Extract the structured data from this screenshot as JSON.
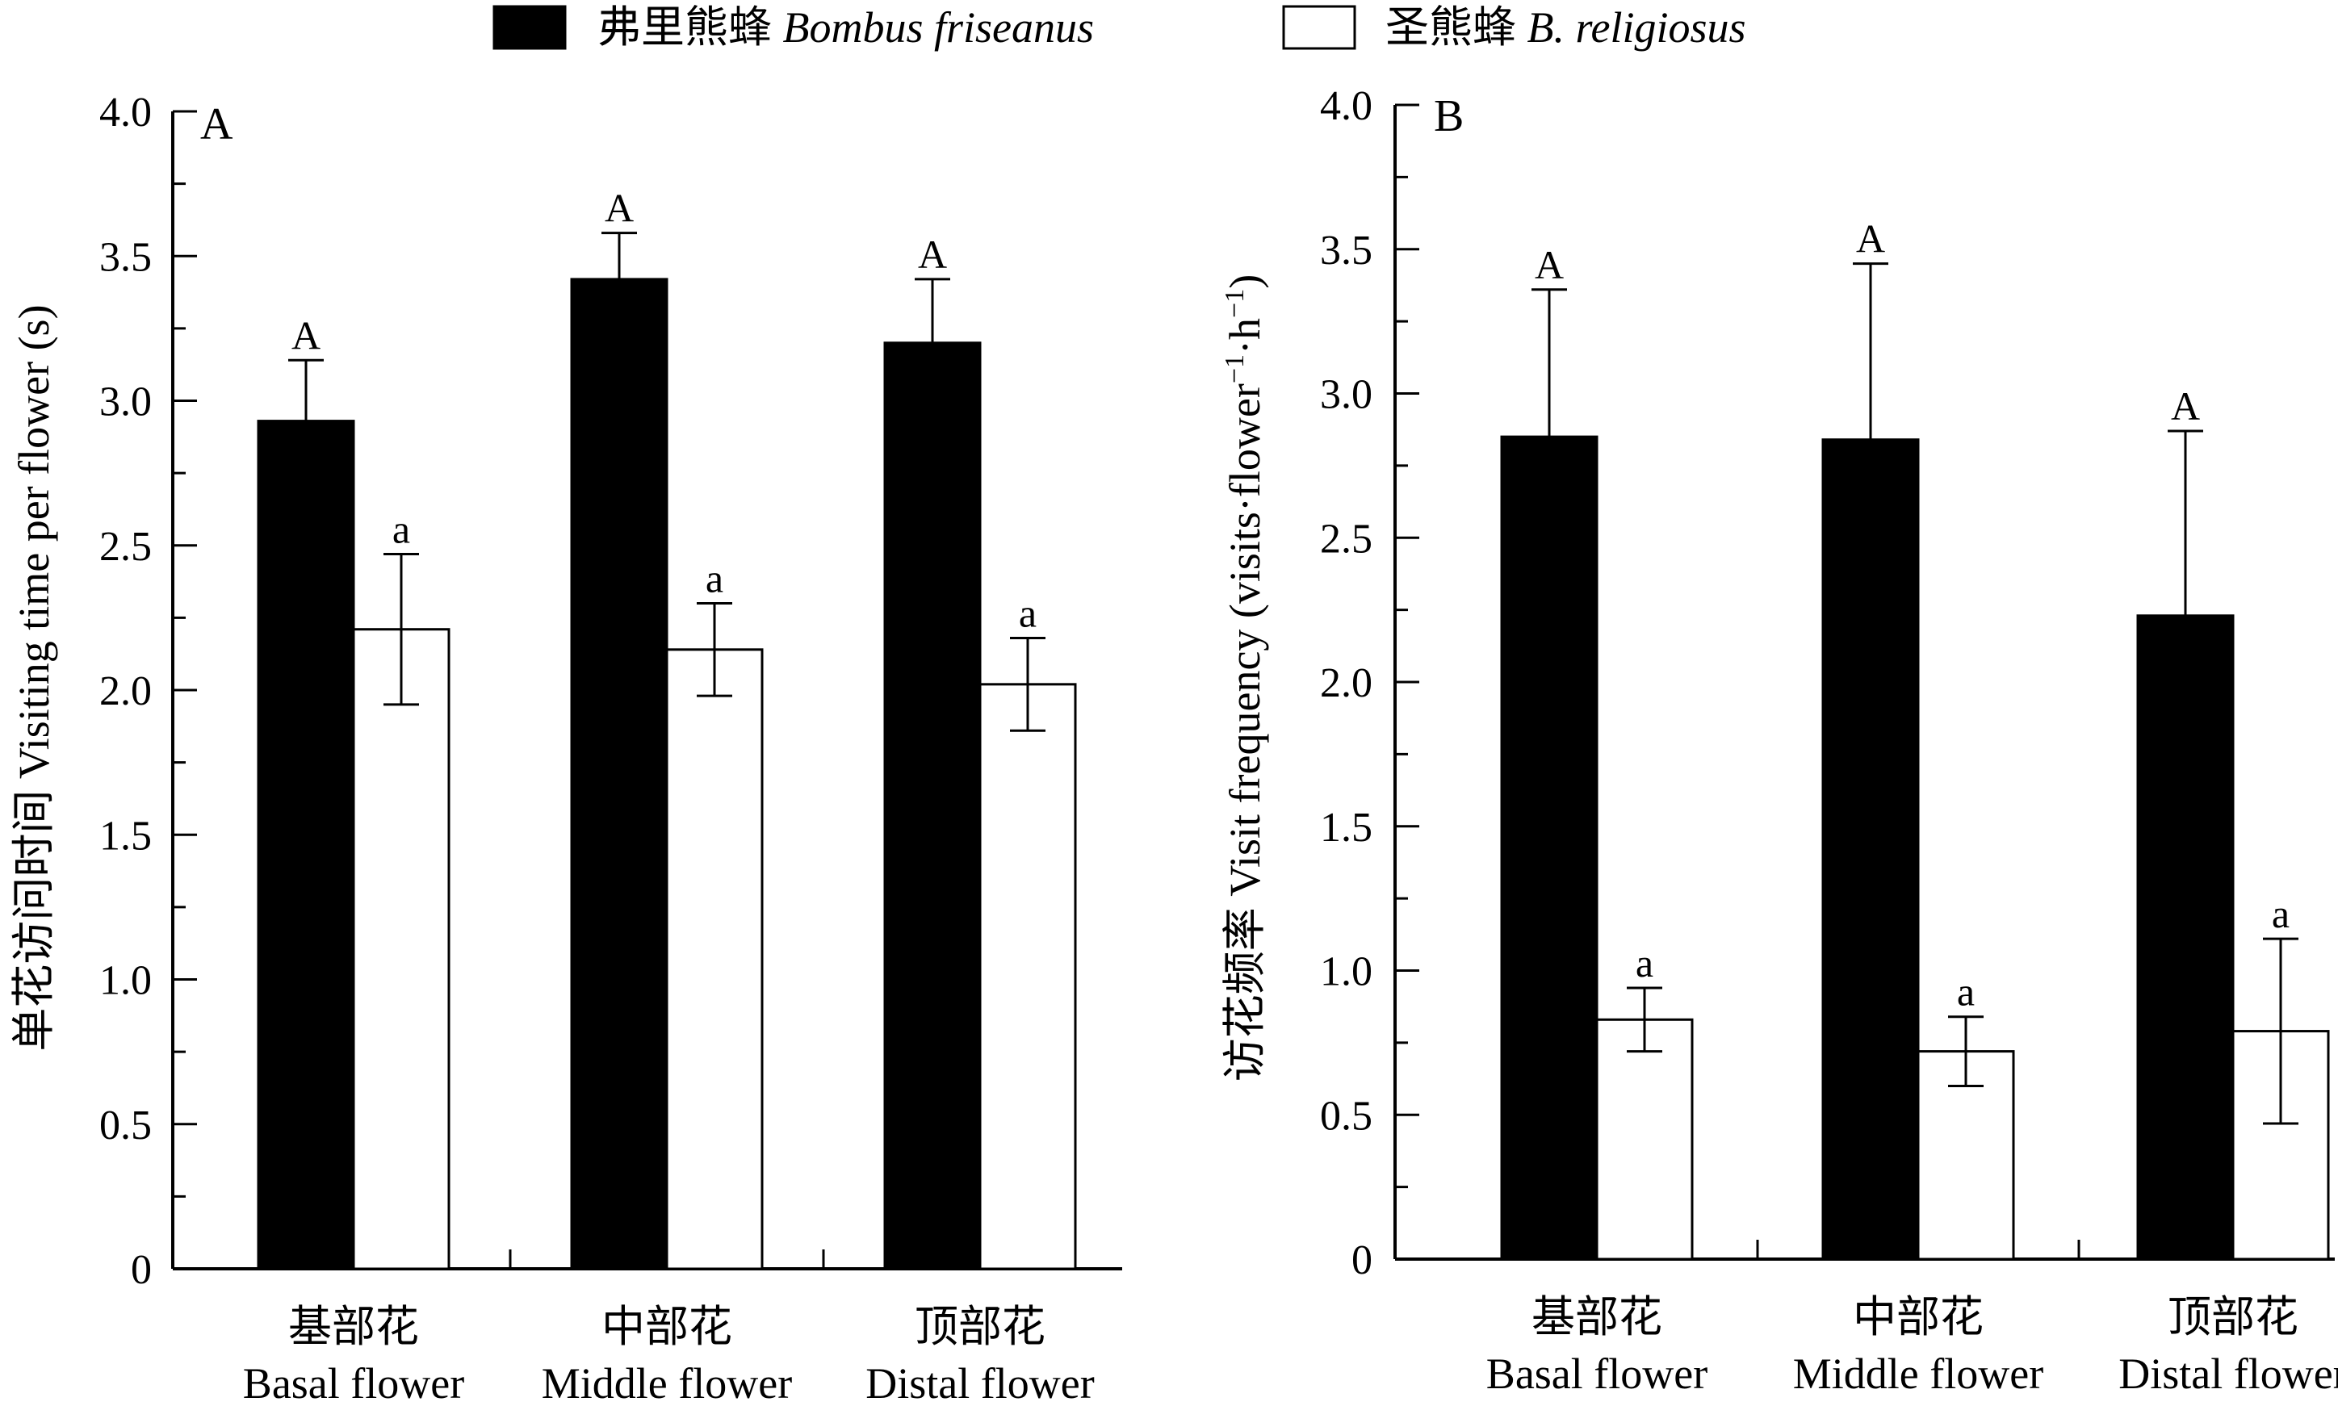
{
  "legend": {
    "series_1_cn": "弗里熊蜂",
    "series_1_en": "Bombus friseanus",
    "series_2_cn": "圣熊蜂",
    "series_2_en": "B. religiosus"
  },
  "colors": {
    "series_1_fill": "#000000",
    "series_2_fill": "#ffffff",
    "stroke": "#000000"
  },
  "chart_data": [
    {
      "type": "bar",
      "panel": "A",
      "ylabel_cn": "单花访问时间",
      "ylabel_en": "Visiting time per flower (s)",
      "ylim": [
        0,
        4.0
      ],
      "yticks": [
        "0",
        "0.5",
        "1.0",
        "1.5",
        "2.0",
        "2.5",
        "3.0",
        "3.5",
        "4.0"
      ],
      "categories_cn": [
        "基部花",
        "中部花",
        "顶部花"
      ],
      "categories_en": [
        "Basal flower",
        "Middle flower",
        "Distal flower"
      ],
      "series": [
        {
          "values": [
            2.93,
            3.42,
            3.2
          ],
          "errors": [
            0.21,
            0.16,
            0.22
          ],
          "letters": [
            "A",
            "A",
            "A"
          ]
        },
        {
          "values": [
            2.21,
            2.14,
            2.02
          ],
          "errors": [
            0.26,
            0.16,
            0.16
          ],
          "letters": [
            "a",
            "a",
            "a"
          ]
        }
      ]
    },
    {
      "type": "bar",
      "panel": "B",
      "ylabel_cn": "访花频率",
      "ylabel_en": "Visit frequency (visits·flower",
      "ylabel_sup1": "−1",
      "ylabel_mid": "·h",
      "ylabel_sup2": "−1",
      "ylabel_end": ")",
      "ylim": [
        0,
        4.0
      ],
      "yticks": [
        "0",
        "0.5",
        "1.0",
        "1.5",
        "2.0",
        "2.5",
        "3.0",
        "3.5",
        "4.0"
      ],
      "categories_cn": [
        "基部花",
        "中部花",
        "顶部花"
      ],
      "categories_en": [
        "Basal flower",
        "Middle flower",
        "Distal flower"
      ],
      "series": [
        {
          "values": [
            2.85,
            2.84,
            2.23
          ],
          "errors": [
            0.51,
            0.61,
            0.64
          ],
          "letters": [
            "A",
            "A",
            "A"
          ]
        },
        {
          "values": [
            0.83,
            0.72,
            0.79
          ],
          "errors": [
            0.11,
            0.12,
            0.32
          ],
          "letters": [
            "a",
            "a",
            "a"
          ]
        }
      ]
    }
  ]
}
